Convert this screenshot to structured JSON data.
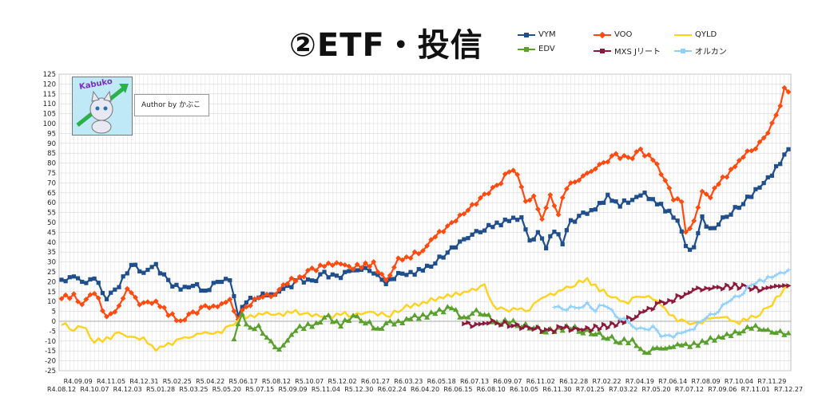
{
  "title": "②ETF・投信",
  "author_text": "Author by かぶこ",
  "logo_text": "Kabuko",
  "chart_data": {
    "type": "line",
    "title": "②ETF・投信",
    "xlabel": "",
    "ylabel": "",
    "ylim": [
      -25,
      125
    ],
    "ytick_step": 5,
    "grid": true,
    "legend_position": "top-right",
    "x_ticks_top": [
      "R4.09.09",
      "R4.11.05",
      "R4.12.31",
      "R5.02.25",
      "R5.04.22",
      "R5.06.17",
      "R5.08.12",
      "R5.10.07",
      "R5.12.02",
      "R6.01.27",
      "R6.03.23",
      "R6.05.18",
      "R6.07.13",
      "R6.09.07",
      "R6.11.02",
      "R6.12.28",
      "R7.02.22",
      "R7.04.19",
      "R7.06.14",
      "R7.08.09",
      "R7.10.04",
      "R7.11.29"
    ],
    "x_ticks_bottom": [
      "R4.08.12",
      "R4.10.07",
      "R4.12.03",
      "R5.01.28",
      "R5.03.25",
      "R5.05.20",
      "R5.07.15",
      "R5.09.09",
      "R5.11.04",
      "R5.12.30",
      "R6.02.24",
      "R6.04.20",
      "R6.06.15",
      "R6.08.10",
      "R6.10.05",
      "R6.11.30",
      "R7.01.25",
      "R7.03.22",
      "R7.05.20",
      "R7.07.12",
      "R7.09.06",
      "R7.11.01",
      "R7.12.27"
    ],
    "n_points": 178,
    "series": [
      {
        "name": "VYM",
        "color": "#1f4e8c",
        "marker": "square",
        "start_index": 0,
        "keyframes": [
          [
            0,
            20
          ],
          [
            3,
            23
          ],
          [
            5,
            19
          ],
          [
            8,
            22
          ],
          [
            11,
            12
          ],
          [
            14,
            18
          ],
          [
            17,
            29
          ],
          [
            20,
            25
          ],
          [
            23,
            28
          ],
          [
            26,
            20
          ],
          [
            29,
            16
          ],
          [
            32,
            19
          ],
          [
            35,
            15
          ],
          [
            38,
            20
          ],
          [
            41,
            21
          ],
          [
            43,
            3
          ],
          [
            45,
            10
          ],
          [
            48,
            13
          ],
          [
            52,
            14
          ],
          [
            55,
            17
          ],
          [
            58,
            21
          ],
          [
            61,
            20
          ],
          [
            64,
            24
          ],
          [
            67,
            22
          ],
          [
            70,
            25
          ],
          [
            73,
            27
          ],
          [
            76,
            25
          ],
          [
            79,
            19
          ],
          [
            82,
            24
          ],
          [
            85,
            24
          ],
          [
            88,
            26
          ],
          [
            91,
            30
          ],
          [
            94,
            35
          ],
          [
            97,
            40
          ],
          [
            100,
            44
          ],
          [
            103,
            47
          ],
          [
            106,
            49
          ],
          [
            109,
            51
          ],
          [
            112,
            53
          ],
          [
            114,
            40
          ],
          [
            116,
            45
          ],
          [
            118,
            38
          ],
          [
            120,
            46
          ],
          [
            122,
            40
          ],
          [
            124,
            50
          ],
          [
            127,
            54
          ],
          [
            130,
            57
          ],
          [
            133,
            63
          ],
          [
            136,
            59
          ],
          [
            139,
            62
          ],
          [
            142,
            64
          ],
          [
            145,
            60
          ],
          [
            148,
            55
          ],
          [
            150,
            52
          ],
          [
            152,
            37
          ],
          [
            154,
            37
          ],
          [
            156,
            52
          ],
          [
            158,
            46
          ],
          [
            160,
            50
          ],
          [
            163,
            55
          ],
          [
            166,
            60
          ],
          [
            169,
            66
          ],
          [
            172,
            72
          ],
          [
            175,
            80
          ],
          [
            177,
            87
          ]
        ]
      },
      {
        "name": "VOO",
        "color": "#ff4a10",
        "marker": "diamond",
        "start_index": 0,
        "keyframes": [
          [
            0,
            12
          ],
          [
            3,
            13
          ],
          [
            5,
            9
          ],
          [
            8,
            15
          ],
          [
            11,
            2
          ],
          [
            14,
            7
          ],
          [
            16,
            17
          ],
          [
            19,
            9
          ],
          [
            23,
            10
          ],
          [
            26,
            4
          ],
          [
            29,
            0
          ],
          [
            32,
            4
          ],
          [
            35,
            7
          ],
          [
            38,
            8
          ],
          [
            41,
            10
          ],
          [
            43,
            2
          ],
          [
            45,
            7
          ],
          [
            48,
            12
          ],
          [
            52,
            14
          ],
          [
            55,
            20
          ],
          [
            58,
            22
          ],
          [
            61,
            26
          ],
          [
            64,
            28
          ],
          [
            67,
            30
          ],
          [
            70,
            27
          ],
          [
            73,
            28
          ],
          [
            76,
            29
          ],
          [
            79,
            20
          ],
          [
            82,
            31
          ],
          [
            85,
            33
          ],
          [
            88,
            36
          ],
          [
            91,
            43
          ],
          [
            94,
            48
          ],
          [
            97,
            53
          ],
          [
            100,
            58
          ],
          [
            103,
            64
          ],
          [
            106,
            68
          ],
          [
            109,
            76
          ],
          [
            111,
            75
          ],
          [
            113,
            60
          ],
          [
            115,
            63
          ],
          [
            117,
            52
          ],
          [
            119,
            63
          ],
          [
            121,
            55
          ],
          [
            123,
            68
          ],
          [
            126,
            72
          ],
          [
            129,
            76
          ],
          [
            132,
            80
          ],
          [
            135,
            84
          ],
          [
            138,
            82
          ],
          [
            141,
            86
          ],
          [
            144,
            82
          ],
          [
            147,
            72
          ],
          [
            149,
            62
          ],
          [
            151,
            60
          ],
          [
            152,
            45
          ],
          [
            154,
            50
          ],
          [
            156,
            66
          ],
          [
            158,
            63
          ],
          [
            160,
            70
          ],
          [
            163,
            76
          ],
          [
            166,
            84
          ],
          [
            169,
            88
          ],
          [
            172,
            95
          ],
          [
            175,
            110
          ],
          [
            176,
            117
          ],
          [
            177,
            116
          ]
        ]
      },
      {
        "name": "QYLD",
        "color": "#ffd21f",
        "marker": "none",
        "start_index": 0,
        "keyframes": [
          [
            0,
            -1
          ],
          [
            3,
            -4
          ],
          [
            5,
            -2
          ],
          [
            8,
            -10
          ],
          [
            11,
            -9
          ],
          [
            14,
            -6
          ],
          [
            17,
            -8
          ],
          [
            20,
            -9
          ],
          [
            23,
            -14
          ],
          [
            26,
            -12
          ],
          [
            29,
            -9
          ],
          [
            32,
            -7
          ],
          [
            35,
            -6
          ],
          [
            38,
            -6
          ],
          [
            41,
            -3
          ],
          [
            44,
            2
          ],
          [
            47,
            3
          ],
          [
            50,
            4
          ],
          [
            53,
            3
          ],
          [
            56,
            5
          ],
          [
            59,
            4
          ],
          [
            62,
            3
          ],
          [
            65,
            2
          ],
          [
            68,
            4
          ],
          [
            71,
            3
          ],
          [
            74,
            5
          ],
          [
            77,
            4
          ],
          [
            80,
            3
          ],
          [
            83,
            7
          ],
          [
            86,
            8
          ],
          [
            89,
            10
          ],
          [
            92,
            12
          ],
          [
            95,
            13
          ],
          [
            98,
            15
          ],
          [
            101,
            16
          ],
          [
            103,
            18
          ],
          [
            105,
            8
          ],
          [
            108,
            5
          ],
          [
            111,
            7
          ],
          [
            113,
            4
          ],
          [
            116,
            11
          ],
          [
            119,
            13
          ],
          [
            122,
            16
          ],
          [
            125,
            19
          ],
          [
            128,
            21
          ],
          [
            131,
            16
          ],
          [
            134,
            13
          ],
          [
            137,
            9
          ],
          [
            140,
            12
          ],
          [
            143,
            13
          ],
          [
            146,
            8
          ],
          [
            149,
            2
          ],
          [
            152,
            -1
          ],
          [
            155,
            -1
          ],
          [
            158,
            1
          ],
          [
            161,
            3
          ],
          [
            164,
            -1
          ],
          [
            167,
            1
          ],
          [
            170,
            4
          ],
          [
            173,
            9
          ],
          [
            176,
            16
          ],
          [
            177,
            17
          ]
        ]
      },
      {
        "name": "EDV",
        "color": "#59a02c",
        "marker": "triangle",
        "start_index": 42,
        "keyframes": [
          [
            42,
            -8
          ],
          [
            44,
            3
          ],
          [
            46,
            -4
          ],
          [
            48,
            -3
          ],
          [
            51,
            -11
          ],
          [
            53,
            -14
          ],
          [
            55,
            -10
          ],
          [
            57,
            -4
          ],
          [
            59,
            -3
          ],
          [
            62,
            -1
          ],
          [
            65,
            2
          ],
          [
            68,
            -2
          ],
          [
            71,
            3
          ],
          [
            74,
            0
          ],
          [
            77,
            -4
          ],
          [
            80,
            -1
          ],
          [
            83,
            0
          ],
          [
            86,
            2
          ],
          [
            89,
            3
          ],
          [
            92,
            5
          ],
          [
            95,
            7
          ],
          [
            98,
            1
          ],
          [
            100,
            5
          ],
          [
            103,
            4
          ],
          [
            106,
            -1
          ],
          [
            109,
            0
          ],
          [
            112,
            -2
          ],
          [
            115,
            -3
          ],
          [
            118,
            -5
          ],
          [
            121,
            -4
          ],
          [
            124,
            -3
          ],
          [
            127,
            -5
          ],
          [
            130,
            -6
          ],
          [
            133,
            -8
          ],
          [
            136,
            -10
          ],
          [
            139,
            -10
          ],
          [
            142,
            -16
          ],
          [
            145,
            -14
          ],
          [
            148,
            -13
          ],
          [
            151,
            -12
          ],
          [
            154,
            -12
          ],
          [
            157,
            -10
          ],
          [
            160,
            -8
          ],
          [
            163,
            -7
          ],
          [
            166,
            -4
          ],
          [
            169,
            -3
          ],
          [
            172,
            -5
          ],
          [
            175,
            -6
          ],
          [
            177,
            -6
          ]
        ]
      },
      {
        "name": "MXS Jリート",
        "color": "#8b1a3b",
        "marker": "triangle-right",
        "start_index": 98,
        "keyframes": [
          [
            98,
            -1
          ],
          [
            101,
            -2
          ],
          [
            104,
            0
          ],
          [
            107,
            -1
          ],
          [
            110,
            -2
          ],
          [
            113,
            -3
          ],
          [
            116,
            -4
          ],
          [
            119,
            -5
          ],
          [
            122,
            -3
          ],
          [
            125,
            -4
          ],
          [
            128,
            -4
          ],
          [
            131,
            -3
          ],
          [
            134,
            -2
          ],
          [
            137,
            0
          ],
          [
            140,
            3
          ],
          [
            143,
            6
          ],
          [
            146,
            9
          ],
          [
            149,
            11
          ],
          [
            152,
            14
          ],
          [
            155,
            16
          ],
          [
            158,
            17
          ],
          [
            161,
            17
          ],
          [
            164,
            18
          ],
          [
            167,
            17
          ],
          [
            170,
            16
          ],
          [
            173,
            17
          ],
          [
            176,
            19
          ],
          [
            177,
            18
          ]
        ]
      },
      {
        "name": "オルカン",
        "color": "#8fd0ff",
        "marker": "star",
        "start_index": 120,
        "keyframes": [
          [
            120,
            8
          ],
          [
            122,
            5
          ],
          [
            124,
            8
          ],
          [
            126,
            6
          ],
          [
            128,
            9
          ],
          [
            130,
            6
          ],
          [
            132,
            8
          ],
          [
            134,
            5
          ],
          [
            136,
            2
          ],
          [
            138,
            -1
          ],
          [
            140,
            -3
          ],
          [
            142,
            -5
          ],
          [
            144,
            -2
          ],
          [
            146,
            -7
          ],
          [
            148,
            -8
          ],
          [
            150,
            -6
          ],
          [
            152,
            -5
          ],
          [
            154,
            -3
          ],
          [
            156,
            0
          ],
          [
            158,
            3
          ],
          [
            160,
            6
          ],
          [
            162,
            9
          ],
          [
            164,
            12
          ],
          [
            166,
            15
          ],
          [
            168,
            18
          ],
          [
            170,
            20
          ],
          [
            172,
            22
          ],
          [
            174,
            24
          ],
          [
            176,
            25
          ],
          [
            177,
            26
          ]
        ]
      }
    ]
  }
}
